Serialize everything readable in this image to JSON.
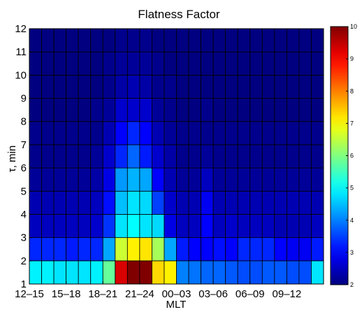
{
  "chart_data": {
    "type": "heatmap",
    "title": "Flatness Factor",
    "xlabel": "MLT",
    "ylabel": "τ, min",
    "x_tick_labels": [
      "12–15",
      "15–18",
      "18–21",
      "21–24",
      "00–03",
      "03–06",
      "06–09",
      "09–12"
    ],
    "y_tick_labels": [
      "1",
      "2",
      "3",
      "4",
      "5",
      "6",
      "7",
      "8",
      "9",
      "10",
      "11",
      "12"
    ],
    "ylim": [
      1,
      12
    ],
    "colorbar": {
      "ticks": [
        "2",
        "3",
        "4",
        "5",
        "6",
        "7",
        "8",
        "9",
        "10"
      ],
      "range": [
        2,
        10
      ],
      "colormap": "jet"
    },
    "columns": 24,
    "rows": 11,
    "values": [
      [
        4.9,
        4.9,
        4.8,
        4.8,
        4.8,
        4.9,
        5.8,
        9.3,
        10.0,
        10.0,
        7.3,
        7.1,
        4.0,
        3.9,
        3.8,
        3.8,
        3.7,
        3.6,
        3.6,
        3.7,
        3.7,
        3.6,
        3.6,
        4.8
      ],
      [
        3.3,
        3.3,
        3.3,
        3.2,
        3.3,
        3.3,
        4.3,
        6.6,
        7.1,
        7.2,
        6.3,
        4.3,
        3.2,
        3.0,
        3.0,
        3.1,
        3.0,
        3.3,
        3.3,
        3.3,
        3.0,
        2.9,
        2.9,
        3.2
      ],
      [
        2.5,
        2.5,
        2.5,
        2.5,
        2.5,
        2.6,
        3.4,
        4.8,
        5.0,
        4.8,
        4.7,
        2.8,
        2.5,
        2.5,
        3.0,
        2.5,
        2.6,
        2.5,
        2.5,
        2.5,
        2.4,
        2.4,
        2.4,
        2.5
      ],
      [
        2.4,
        2.4,
        2.4,
        2.4,
        2.4,
        2.5,
        3.1,
        4.5,
        4.8,
        4.7,
        3.5,
        2.6,
        2.4,
        2.4,
        2.9,
        2.4,
        2.4,
        2.4,
        2.4,
        2.4,
        2.4,
        2.4,
        2.4,
        2.4
      ],
      [
        2.2,
        2.2,
        2.2,
        2.2,
        2.2,
        2.3,
        2.8,
        4.2,
        4.4,
        4.3,
        3.0,
        2.4,
        2.2,
        2.2,
        2.5,
        2.2,
        2.2,
        2.2,
        2.2,
        2.2,
        2.2,
        2.2,
        2.2,
        2.2
      ],
      [
        2.1,
        2.1,
        2.1,
        2.1,
        2.1,
        2.2,
        2.6,
        3.3,
        3.8,
        3.2,
        2.6,
        2.3,
        2.1,
        2.1,
        2.2,
        2.1,
        2.1,
        2.1,
        2.1,
        2.1,
        2.1,
        2.1,
        2.1,
        2.1
      ],
      [
        2.1,
        2.1,
        2.1,
        2.1,
        2.1,
        2.1,
        2.4,
        3.0,
        3.3,
        3.0,
        2.4,
        2.2,
        2.1,
        2.1,
        2.1,
        2.1,
        2.1,
        2.1,
        2.1,
        2.1,
        2.1,
        2.1,
        2.1,
        2.1
      ],
      [
        2.0,
        2.0,
        2.0,
        2.0,
        2.0,
        2.1,
        2.2,
        2.6,
        2.6,
        2.6,
        2.2,
        2.1,
        2.0,
        2.0,
        2.1,
        2.0,
        2.0,
        2.0,
        2.0,
        2.0,
        2.0,
        2.0,
        2.0,
        2.0
      ],
      [
        2.0,
        2.0,
        2.0,
        2.0,
        2.0,
        2.0,
        2.1,
        2.3,
        2.4,
        2.3,
        2.1,
        2.1,
        2.0,
        2.0,
        2.0,
        2.0,
        2.0,
        2.0,
        2.0,
        2.0,
        2.0,
        2.0,
        2.0,
        2.0
      ],
      [
        2.0,
        2.0,
        2.0,
        2.0,
        2.0,
        2.0,
        2.1,
        2.2,
        2.2,
        2.2,
        2.1,
        2.0,
        2.0,
        2.0,
        2.0,
        2.0,
        2.0,
        2.0,
        2.0,
        2.0,
        2.0,
        2.0,
        2.0,
        2.0
      ],
      [
        2.0,
        2.0,
        2.0,
        2.0,
        2.0,
        2.0,
        2.0,
        2.1,
        2.1,
        2.1,
        2.0,
        2.0,
        2.0,
        2.0,
        2.0,
        2.0,
        2.0,
        2.0,
        2.0,
        2.0,
        2.0,
        2.0,
        2.0,
        2.0
      ]
    ]
  }
}
